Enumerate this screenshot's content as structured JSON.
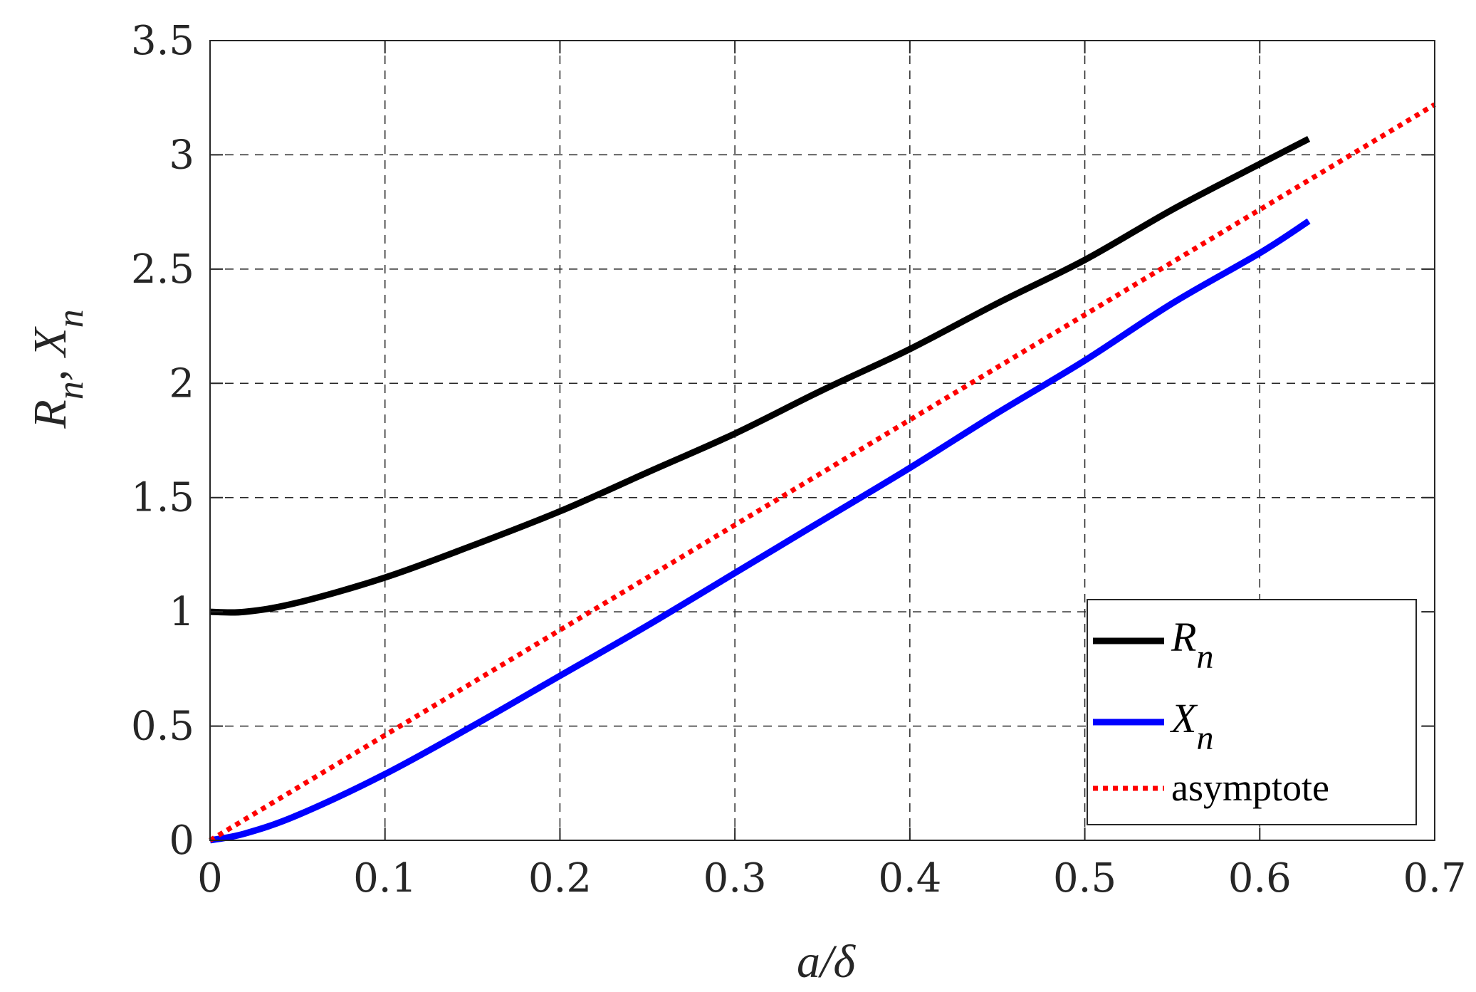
{
  "chart_data": {
    "type": "line",
    "xlabel": "a/δ",
    "ylabel": {
      "first": "R",
      "first_sub": "n",
      "separator": ",",
      "second": "X",
      "second_sub": "n"
    },
    "xlim": [
      0,
      0.7
    ],
    "ylim": [
      0,
      3.5
    ],
    "xticks": [
      "0",
      "0.1",
      "0.2",
      "0.3",
      "0.4",
      "0.5",
      "0.6",
      "0.7"
    ],
    "yticks": [
      "0",
      "0.5",
      "1",
      "1.5",
      "2",
      "2.5",
      "3",
      "3.5"
    ],
    "grid": true,
    "grid_style": "dashed",
    "legend_position": "bottom-right",
    "series": [
      {
        "name": "R",
        "name_sub": "n",
        "color": "#000000",
        "style": "solid",
        "x": [
          0,
          0.02,
          0.05,
          0.1,
          0.15,
          0.2,
          0.25,
          0.3,
          0.35,
          0.4,
          0.45,
          0.5,
          0.55,
          0.6,
          0.628
        ],
        "y": [
          1.0,
          1.0,
          1.04,
          1.15,
          1.29,
          1.44,
          1.61,
          1.78,
          1.97,
          2.15,
          2.35,
          2.54,
          2.76,
          2.96,
          3.07
        ]
      },
      {
        "name": "X",
        "name_sub": "n",
        "color": "#0000ff",
        "style": "solid",
        "x": [
          0,
          0.02,
          0.05,
          0.1,
          0.15,
          0.2,
          0.25,
          0.3,
          0.35,
          0.4,
          0.45,
          0.5,
          0.55,
          0.6,
          0.628
        ],
        "y": [
          0.0,
          0.03,
          0.11,
          0.29,
          0.5,
          0.72,
          0.94,
          1.17,
          1.4,
          1.63,
          1.87,
          2.1,
          2.35,
          2.57,
          2.71
        ]
      },
      {
        "name": "asymptote",
        "color": "#ff0000",
        "style": "dotted",
        "x": [
          0,
          0.1,
          0.2,
          0.3,
          0.4,
          0.5,
          0.6,
          0.7
        ],
        "y": [
          0.0,
          0.46,
          0.92,
          1.38,
          1.84,
          2.3,
          2.76,
          3.22
        ]
      }
    ]
  }
}
